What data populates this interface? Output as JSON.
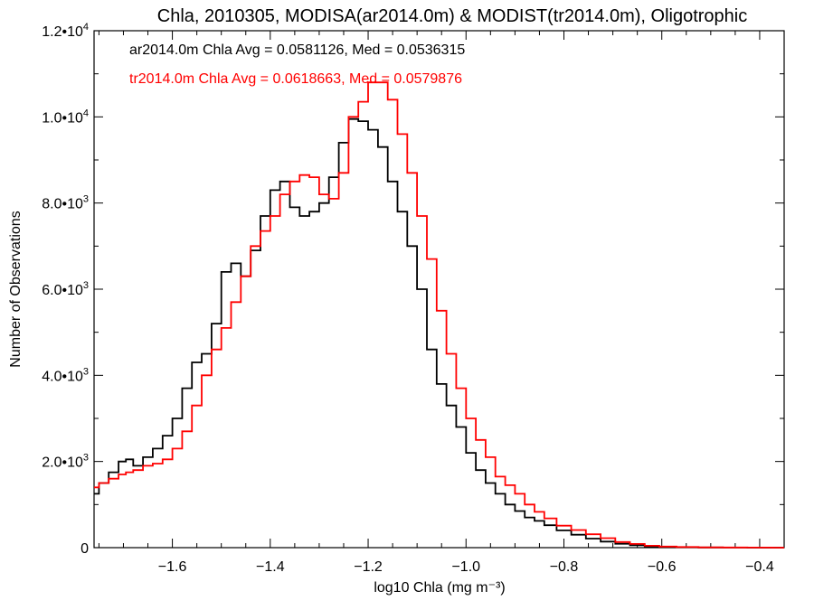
{
  "chart_data": {
    "type": "line",
    "title": "Chla, 2010305, MODISA(ar2014.0m) & MODIST(tr2014.0m), Oligotrophic",
    "xlabel": "log10 Chla (mg m⁻³)",
    "ylabel": "Number of Observations",
    "xlim": [
      -1.76,
      -0.35
    ],
    "ylim": [
      0,
      12000
    ],
    "x_ticks": [
      {
        "value": -1.6,
        "label": "−1.6"
      },
      {
        "value": -1.4,
        "label": "−1.4"
      },
      {
        "value": -1.2,
        "label": "−1.2"
      },
      {
        "value": -1.0,
        "label": "−1.0"
      },
      {
        "value": -0.8,
        "label": "−0.8"
      },
      {
        "value": -0.6,
        "label": "−0.6"
      },
      {
        "value": -0.4,
        "label": "−0.4"
      }
    ],
    "y_ticks": [
      {
        "value": 0,
        "mant": "0",
        "exp": ""
      },
      {
        "value": 2000,
        "mant": "2.0•10",
        "exp": "3"
      },
      {
        "value": 4000,
        "mant": "4.0•10",
        "exp": "3"
      },
      {
        "value": 6000,
        "mant": "6.0•10",
        "exp": "3"
      },
      {
        "value": 8000,
        "mant": "8.0•10",
        "exp": "3"
      },
      {
        "value": 10000,
        "mant": "1.0•10",
        "exp": "4"
      },
      {
        "value": 12000,
        "mant": "1.2•10",
        "exp": "4"
      }
    ],
    "grid": false,
    "line_style": "step",
    "series": [
      {
        "name": "ar2014.0m",
        "color": "#000000",
        "annotation": "ar2014.0m Chla Avg = 0.0581126, Med = 0.0536315",
        "x": [
          -1.76,
          -1.74,
          -1.72,
          -1.7,
          -1.69,
          -1.67,
          -1.65,
          -1.63,
          -1.61,
          -1.59,
          -1.57,
          -1.55,
          -1.53,
          -1.51,
          -1.49,
          -1.47,
          -1.45,
          -1.43,
          -1.41,
          -1.39,
          -1.37,
          -1.35,
          -1.33,
          -1.31,
          -1.29,
          -1.27,
          -1.25,
          -1.23,
          -1.21,
          -1.19,
          -1.17,
          -1.15,
          -1.13,
          -1.11,
          -1.09,
          -1.07,
          -1.05,
          -1.03,
          -1.01,
          -0.99,
          -0.97,
          -0.95,
          -0.93,
          -0.91,
          -0.89,
          -0.87,
          -0.85,
          -0.83,
          -0.8,
          -0.77,
          -0.74,
          -0.71,
          -0.68,
          -0.65,
          -0.62,
          -0.59,
          -0.55,
          -0.5,
          -0.45,
          -0.4,
          -0.35
        ],
        "y": [
          1250,
          1500,
          1750,
          2000,
          2050,
          1900,
          2100,
          2300,
          2600,
          3000,
          3700,
          4300,
          4500,
          5200,
          6400,
          6600,
          6300,
          6900,
          7700,
          8300,
          8500,
          7900,
          7700,
          7800,
          8000,
          8600,
          9400,
          9950,
          9900,
          9700,
          9300,
          8500,
          7800,
          7000,
          6000,
          4600,
          3800,
          3300,
          2800,
          2200,
          1800,
          1500,
          1250,
          1000,
          850,
          700,
          620,
          520,
          400,
          300,
          210,
          140,
          90,
          55,
          30,
          18,
          10,
          5,
          3,
          1,
          0
        ]
      },
      {
        "name": "tr2014.0m",
        "color": "#ff0000",
        "annotation": "tr2014.0m Chla Avg = 0.0618663, Med = 0.0579876",
        "x": [
          -1.76,
          -1.74,
          -1.72,
          -1.7,
          -1.69,
          -1.67,
          -1.65,
          -1.63,
          -1.61,
          -1.59,
          -1.57,
          -1.55,
          -1.53,
          -1.51,
          -1.49,
          -1.47,
          -1.45,
          -1.43,
          -1.41,
          -1.39,
          -1.37,
          -1.35,
          -1.33,
          -1.31,
          -1.29,
          -1.27,
          -1.25,
          -1.23,
          -1.21,
          -1.19,
          -1.17,
          -1.15,
          -1.13,
          -1.11,
          -1.09,
          -1.07,
          -1.05,
          -1.03,
          -1.01,
          -0.99,
          -0.97,
          -0.95,
          -0.93,
          -0.91,
          -0.89,
          -0.87,
          -0.85,
          -0.83,
          -0.8,
          -0.77,
          -0.74,
          -0.71,
          -0.68,
          -0.65,
          -0.62,
          -0.59,
          -0.55,
          -0.5,
          -0.45,
          -0.4,
          -0.35
        ],
        "y": [
          1400,
          1500,
          1600,
          1700,
          1750,
          1800,
          1900,
          1950,
          2050,
          2300,
          2700,
          3300,
          4000,
          4600,
          5100,
          5700,
          6300,
          7000,
          7350,
          7700,
          8200,
          8500,
          8650,
          8600,
          8200,
          8100,
          8700,
          10000,
          10350,
          10800,
          10800,
          10400,
          9600,
          8700,
          7700,
          6700,
          5500,
          4500,
          3700,
          3000,
          2500,
          2100,
          1650,
          1450,
          1250,
          1000,
          830,
          680,
          510,
          410,
          310,
          220,
          130,
          85,
          45,
          25,
          15,
          7,
          4,
          2,
          1
        ]
      }
    ]
  }
}
